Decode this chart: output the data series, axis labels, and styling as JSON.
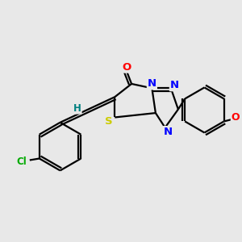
{
  "bg_color": "#e8e8e8",
  "bond_color": "#000000",
  "atom_colors": {
    "O": "#ff0000",
    "N": "#0000ff",
    "S": "#cccc00",
    "Cl": "#00aa00",
    "H": "#008080",
    "C": "#000000"
  },
  "figsize": [
    3.0,
    3.0
  ],
  "dpi": 100,
  "lw": 1.6,
  "fontsize": 9.5
}
